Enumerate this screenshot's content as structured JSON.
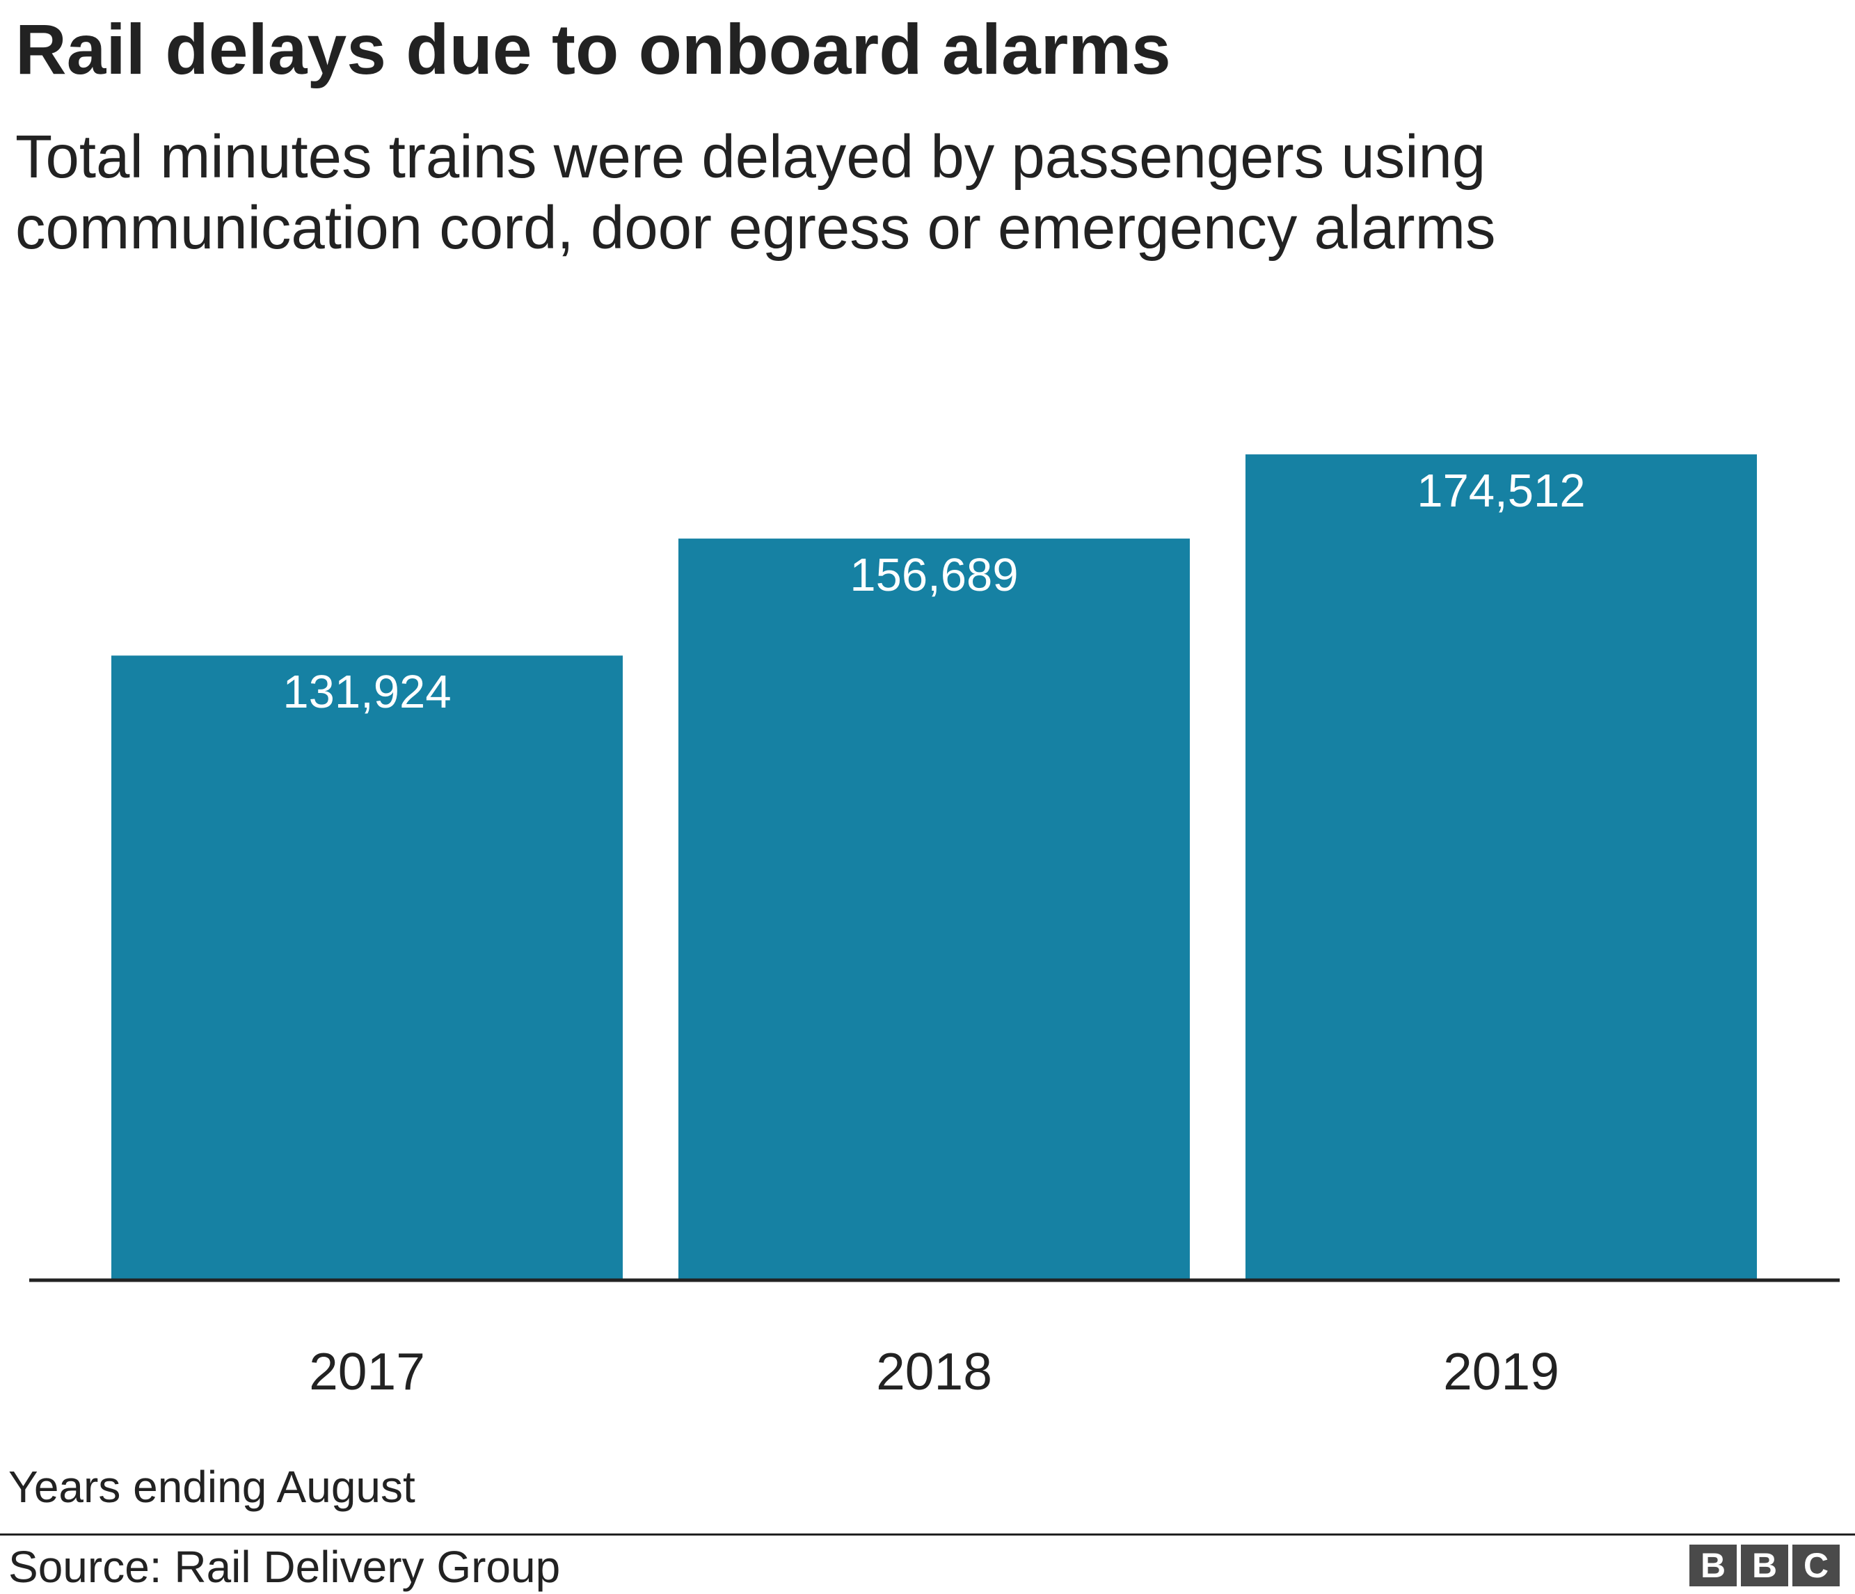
{
  "header": {
    "title": "Rail delays due to onboard alarms",
    "subtitle": "Total minutes trains were delayed by passengers using communication cord, door egress or emergency alarms"
  },
  "footer": {
    "note": "Years ending August",
    "source": "Source: Rail Delivery Group",
    "logo_letters": [
      "B",
      "B",
      "C"
    ]
  },
  "colors": {
    "bar": "#1681a3",
    "axis": "#222222",
    "label": "#ffffff"
  },
  "chart_data": {
    "type": "bar",
    "title": "Rail delays due to onboard alarms",
    "subtitle": "Total minutes trains were delayed by passengers using communication cord, door egress or emergency alarms",
    "categories": [
      "2017",
      "2018",
      "2019"
    ],
    "values": [
      131924,
      156689,
      174512
    ],
    "value_labels": [
      "131,924",
      "156,689",
      "174,512"
    ],
    "xlabel": "",
    "ylabel": "",
    "ylim": [
      0,
      210000
    ],
    "grid": false,
    "legend": "none"
  }
}
